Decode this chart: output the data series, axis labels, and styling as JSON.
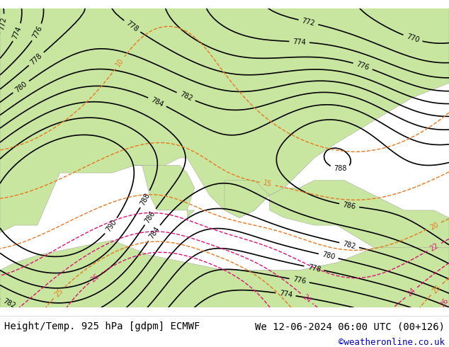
{
  "title_left": "Height/Temp. 925 hPa [gdpm] ECMWF",
  "title_right": "We 12-06-2024 06:00 UTC (00+126)",
  "credit": "©weatheronline.co.uk",
  "background_land": "#c8e6a0",
  "background_sea": "#b8d8f0",
  "border_color": "#888888",
  "text_color_left": "#000000",
  "text_color_right": "#000000",
  "credit_color": "#0000cc",
  "bottom_bar_color": "#d4edaa",
  "title_fontsize": 10,
  "credit_fontsize": 9,
  "fig_width": 6.34,
  "fig_height": 4.9,
  "dpi": 100
}
